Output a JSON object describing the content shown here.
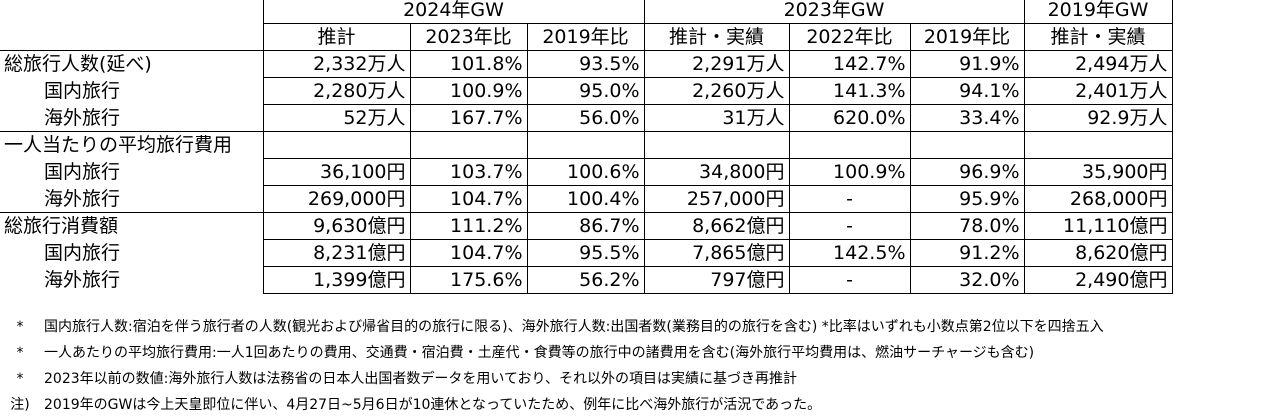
{
  "header": {
    "groups": [
      "2024年GW",
      "2023年GW",
      "2019年GW"
    ],
    "subheads": [
      "推計",
      "2023年比",
      "2019年比",
      "推計・実績",
      "2022年比",
      "2019年比",
      "推計・実績"
    ]
  },
  "rows": [
    {
      "label": "総旅行人数(延べ)",
      "indent": false,
      "cells": [
        "2,332万人",
        "101.8%",
        "93.5%",
        "2,291万人",
        "142.7%",
        "91.9%",
        "2,494万人"
      ]
    },
    {
      "label": "国内旅行",
      "indent": true,
      "cells": [
        "2,280万人",
        "100.9%",
        "95.0%",
        "2,260万人",
        "141.3%",
        "94.1%",
        "2,401万人"
      ]
    },
    {
      "label": "海外旅行",
      "indent": true,
      "cells": [
        "52万人",
        "167.7%",
        "56.0%",
        "31万人",
        "620.0%",
        "33.4%",
        "92.9万人"
      ]
    },
    {
      "label": "一人当たりの平均旅行費用",
      "indent": false,
      "cells": [
        "",
        "",
        "",
        "",
        "",
        "",
        ""
      ]
    },
    {
      "label": "国内旅行",
      "indent": true,
      "cells": [
        "36,100円",
        "103.7%",
        "100.6%",
        "34,800円",
        "100.9%",
        "96.9%",
        "35,900円"
      ]
    },
    {
      "label": "海外旅行",
      "indent": true,
      "cells": [
        "269,000円",
        "104.7%",
        "100.4%",
        "257,000円",
        "-",
        "95.9%",
        "268,000円"
      ]
    },
    {
      "label": "総旅行消費額",
      "indent": false,
      "cells": [
        "9,630億円",
        "111.2%",
        "86.7%",
        "8,662億円",
        "-",
        "78.0%",
        "11,110億円"
      ]
    },
    {
      "label": "国内旅行",
      "indent": true,
      "cells": [
        "8,231億円",
        "104.7%",
        "95.5%",
        "7,865億円",
        "142.5%",
        "91.2%",
        "8,620億円"
      ]
    },
    {
      "label": "海外旅行",
      "indent": true,
      "cells": [
        "1,399億円",
        "175.6%",
        "56.2%",
        "797億円",
        "-",
        "32.0%",
        "2,490億円"
      ]
    }
  ],
  "notes": [
    {
      "mark": "*",
      "text": "国内旅行人数:宿泊を伴う旅行者の人数(観光および帰省目的の旅行に限る)、海外旅行人数:出国者数(業務目的の旅行を含む)  *比率はいずれも小数点第2位以下を四捨五入"
    },
    {
      "mark": "*",
      "text": "一人あたりの平均旅行費用:一人1回あたりの費用、交通費・宿泊費・土産代・食費等の旅行中の諸費用を含む(海外旅行平均費用は、燃油サーチャージも含む)"
    },
    {
      "mark": "*",
      "text": "2023年以前の数値:海外旅行人数は法務省の日本人出国者数データを用いており、それ以外の項目は実績に基づき再推計"
    },
    {
      "mark": "注)",
      "text": "2019年のGWは今上天皇即位に伴い、4月27日~5月6日が10連休となっていたため、例年に比べ海外旅行が活況であった。"
    }
  ]
}
